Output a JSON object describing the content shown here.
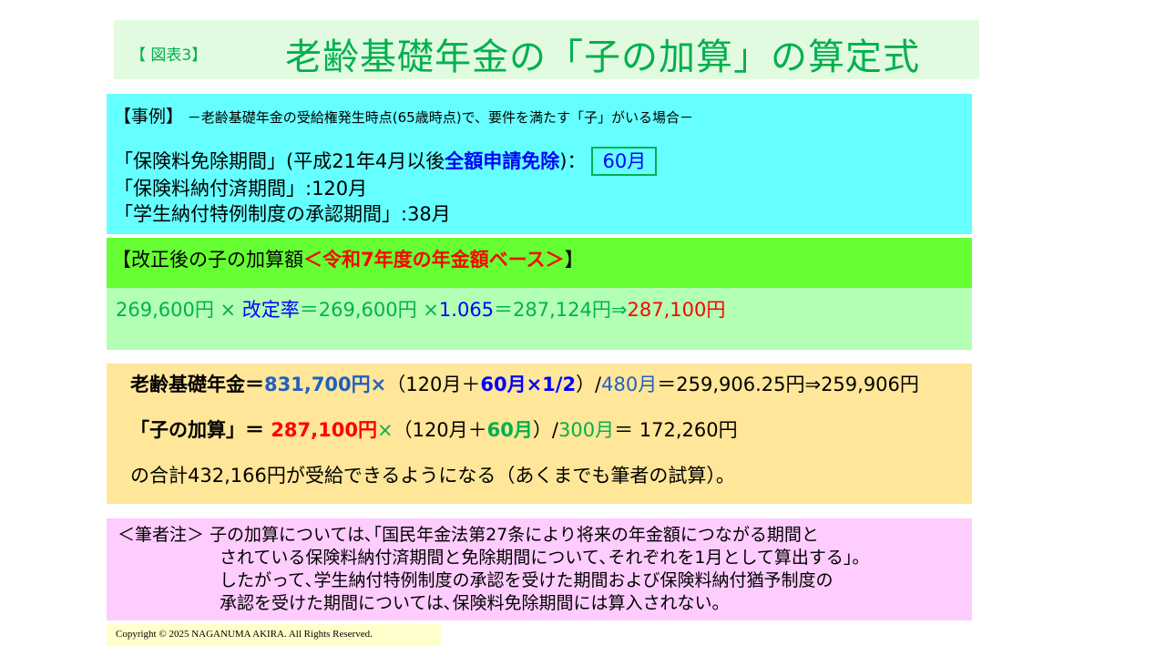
{
  "header": {
    "figure_label": "【 図表3】",
    "title": "老齢基礎年金の「子の加算」の算定式"
  },
  "colors": {
    "green": "#00b050",
    "blue": "#0000ff",
    "red": "#ff0000",
    "black": "#000000",
    "lblue": "#2060c0"
  },
  "case": {
    "lines": [
      [
        {
          "t": "【事例】",
          "c": "#000000",
          "big": true
        },
        {
          "t": " －老齢基礎年金の受給権発生時点(65歳時点)で、要件を満たす「子」がいる場合－",
          "c": "#000000"
        }
      ],
      [
        {
          "t": "「保険料免除期間」(平成21年4月以後",
          "c": "#000000"
        },
        {
          "t": "全額申請免除",
          "c": "#0000ff",
          "b": true
        },
        {
          "t": ")：",
          "c": "#000000"
        },
        {
          "t": "60月",
          "c": "#0000ff",
          "box": true
        }
      ],
      [
        {
          "t": "「保険料納付済期間」:120月",
          "c": "#000000"
        }
      ],
      [
        {
          "t": "「学生納付特例制度の承認期間」:38月",
          "c": "#000000"
        }
      ]
    ]
  },
  "revision": {
    "heading": [
      {
        "t": "【改正後の子の加算額",
        "c": "#000000"
      },
      {
        "t": "＜令和7年度の年金額ベース＞",
        "c": "#ff0000",
        "b": true
      },
      {
        "t": "】",
        "c": "#000000"
      }
    ],
    "formula": [
      {
        "t": "269,600円 × ",
        "c": "#00b050"
      },
      {
        "t": "改定率",
        "c": "#0000ff"
      },
      {
        "t": "＝269,600円 ×",
        "c": "#00b050"
      },
      {
        "t": "1.065",
        "c": "#0000ff"
      },
      {
        "t": "＝287,124円⇒",
        "c": "#00b050"
      },
      {
        "t": "287,100円",
        "c": "#ff0000"
      }
    ]
  },
  "calculation": {
    "lines": [
      [
        {
          "t": "老齢基礎年金＝",
          "c": "#000000",
          "b": true
        },
        {
          "t": "831,700円×",
          "c": "#2060c0",
          "b": true
        },
        {
          "t": "（120月＋",
          "c": "#000000"
        },
        {
          "t": "60月×1/2",
          "c": "#0000ff",
          "b": true
        },
        {
          "t": "）/",
          "c": "#000000"
        },
        {
          "t": "480月",
          "c": "#2060c0"
        },
        {
          "t": "＝259,906.25円⇒259,906円",
          "c": "#000000"
        }
      ],
      [
        {
          "t": "「子の加算」＝ ",
          "c": "#000000",
          "b": true
        },
        {
          "t": "287,100円",
          "c": "#ff0000",
          "b": true
        },
        {
          "t": "×",
          "c": "#00b050"
        },
        {
          "t": "（120月＋",
          "c": "#000000"
        },
        {
          "t": "60月",
          "c": "#00b050",
          "b": true
        },
        {
          "t": "）/",
          "c": "#000000"
        },
        {
          "t": "300月",
          "c": "#00b050"
        },
        {
          "t": "＝ 172,260円",
          "c": "#000000"
        }
      ],
      [
        {
          "t": "の合計432,166円が受給できるようになる（あくまでも筆者の試算）。",
          "c": "#000000"
        }
      ]
    ]
  },
  "note": {
    "lines": [
      "＜筆者注＞ 子の加算については､｢国民年金法第27条により将来の年金額につながる期間と",
      "されている保険料納付済期間と免除期間について､それぞれを1月として算出する｣。",
      " したがって､学生納付特例制度の承認を受けた期間および保険料納付猶予制度の",
      "承認を受けた期間については､保険料免除期間には算入されない。"
    ]
  },
  "footer": {
    "copyright": "Copyright © 2025 NAGANUMA AKIRA. All Rights Reserved."
  }
}
